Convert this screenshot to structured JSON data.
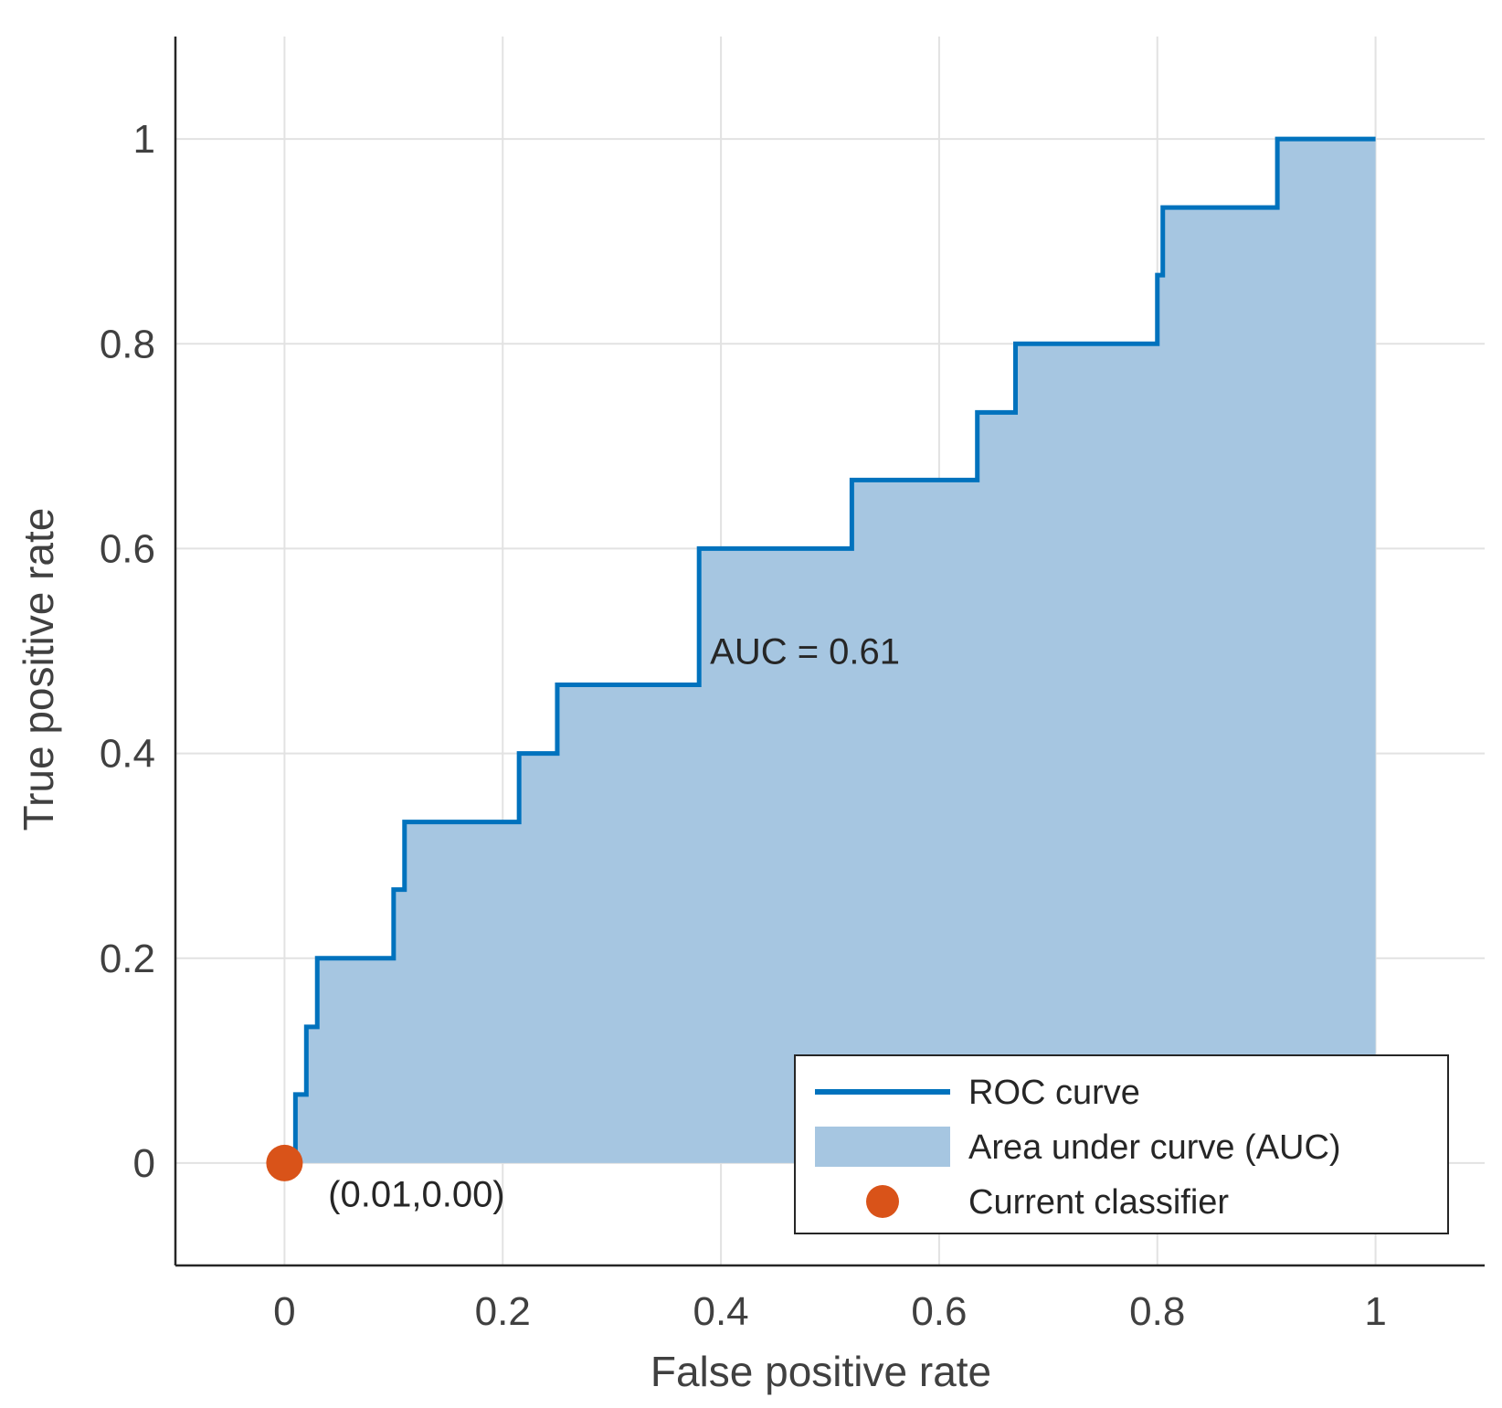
{
  "chart_data": {
    "type": "area",
    "title": "",
    "xlabel": "False positive rate",
    "ylabel": "True positive rate",
    "xlim": [
      -0.1,
      1.1
    ],
    "ylim": [
      -0.1,
      1.1
    ],
    "xticks": [
      0,
      0.2,
      0.4,
      0.6,
      0.8,
      1
    ],
    "yticks": [
      0,
      0.2,
      0.4,
      0.6,
      0.8,
      1
    ],
    "xtick_labels": [
      "0",
      "0.2",
      "0.4",
      "0.6",
      "0.8",
      "1"
    ],
    "ytick_labels": [
      "0",
      "0.2",
      "0.4",
      "0.6",
      "0.8",
      "1"
    ],
    "grid": true,
    "legend_position": "bottom-right",
    "series": [
      {
        "name": "ROC curve",
        "kind": "step-line",
        "color": "#0072BD",
        "points": [
          [
            0,
            0
          ],
          [
            0.01,
            0
          ],
          [
            0.01,
            0.067
          ],
          [
            0.02,
            0.067
          ],
          [
            0.02,
            0.133
          ],
          [
            0.03,
            0.133
          ],
          [
            0.03,
            0.2
          ],
          [
            0.1,
            0.2
          ],
          [
            0.1,
            0.267
          ],
          [
            0.11,
            0.267
          ],
          [
            0.11,
            0.333
          ],
          [
            0.215,
            0.333
          ],
          [
            0.215,
            0.4
          ],
          [
            0.25,
            0.4
          ],
          [
            0.25,
            0.467
          ],
          [
            0.38,
            0.467
          ],
          [
            0.38,
            0.6
          ],
          [
            0.52,
            0.6
          ],
          [
            0.52,
            0.667
          ],
          [
            0.635,
            0.667
          ],
          [
            0.635,
            0.733
          ],
          [
            0.67,
            0.733
          ],
          [
            0.67,
            0.8
          ],
          [
            0.8,
            0.8
          ],
          [
            0.8,
            0.867
          ],
          [
            0.805,
            0.867
          ],
          [
            0.805,
            0.933
          ],
          [
            0.91,
            0.933
          ],
          [
            0.91,
            1.0
          ],
          [
            1.0,
            1.0
          ]
        ]
      },
      {
        "name": "Area under curve (AUC)",
        "kind": "area",
        "color": "#A6C6E1"
      },
      {
        "name": "Current classifier",
        "kind": "point",
        "color": "#D95319",
        "x": 0.01,
        "y": 0.0
      }
    ],
    "annotations": [
      {
        "text": "AUC = 0.61",
        "x": 0.39,
        "y": 0.5
      },
      {
        "text": "(0.01,0.00)",
        "x": 0.04,
        "y": -0.03
      }
    ],
    "auc": 0.61
  }
}
